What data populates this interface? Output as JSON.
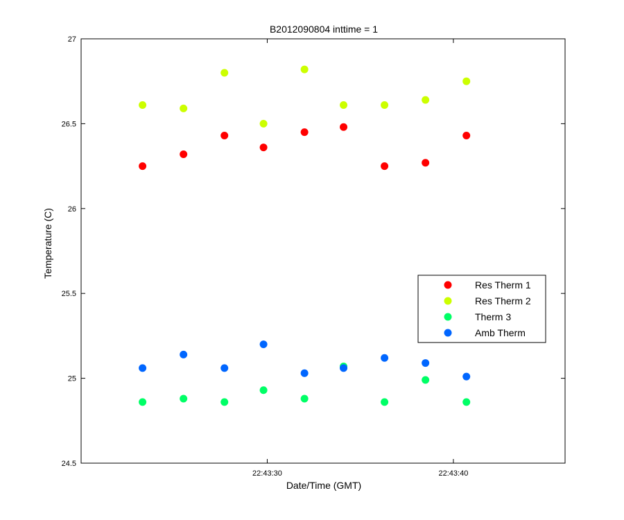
{
  "chart_data": {
    "type": "scatter",
    "title": "B2012090804 inttime = 1",
    "xlabel": "Date/Time (GMT)",
    "ylabel": "Temperature (C)",
    "ylim": [
      24.5,
      27
    ],
    "yticks": [
      "24.5",
      "25",
      "25.5",
      "26",
      "26.5",
      "27"
    ],
    "x_ticks": [
      {
        "time": "22:43:30",
        "label": "22:43:30"
      },
      {
        "time": "22:43:40",
        "label": "22:43:40"
      }
    ],
    "xlim": [
      "22:43:20",
      "22:43:46"
    ],
    "x": [
      "22:43:23.3",
      "22:43:25.5",
      "22:43:27.7",
      "22:43:29.8",
      "22:43:32.0",
      "22:43:34.1",
      "22:43:36.3",
      "22:43:38.5",
      "22:43:40.7"
    ],
    "grid": false,
    "legend_position": "right",
    "series": [
      {
        "name": "Res Therm 1",
        "color": "#ff0000",
        "values": [
          26.25,
          26.32,
          26.43,
          26.36,
          26.45,
          26.48,
          26.25,
          26.27,
          26.43
        ]
      },
      {
        "name": "Res Therm 2",
        "color": "#ccff00",
        "values": [
          26.61,
          26.59,
          26.8,
          26.5,
          26.82,
          26.61,
          26.61,
          26.64,
          26.75
        ]
      },
      {
        "name": "Therm 3",
        "color": "#00ff66",
        "values": [
          24.86,
          24.88,
          24.86,
          24.93,
          24.88,
          25.07,
          24.86,
          24.99,
          24.86
        ]
      },
      {
        "name": "Amb Therm",
        "color": "#0066ff",
        "values": [
          25.06,
          25.14,
          25.06,
          25.2,
          25.03,
          25.06,
          25.12,
          25.09,
          25.01
        ]
      }
    ]
  }
}
